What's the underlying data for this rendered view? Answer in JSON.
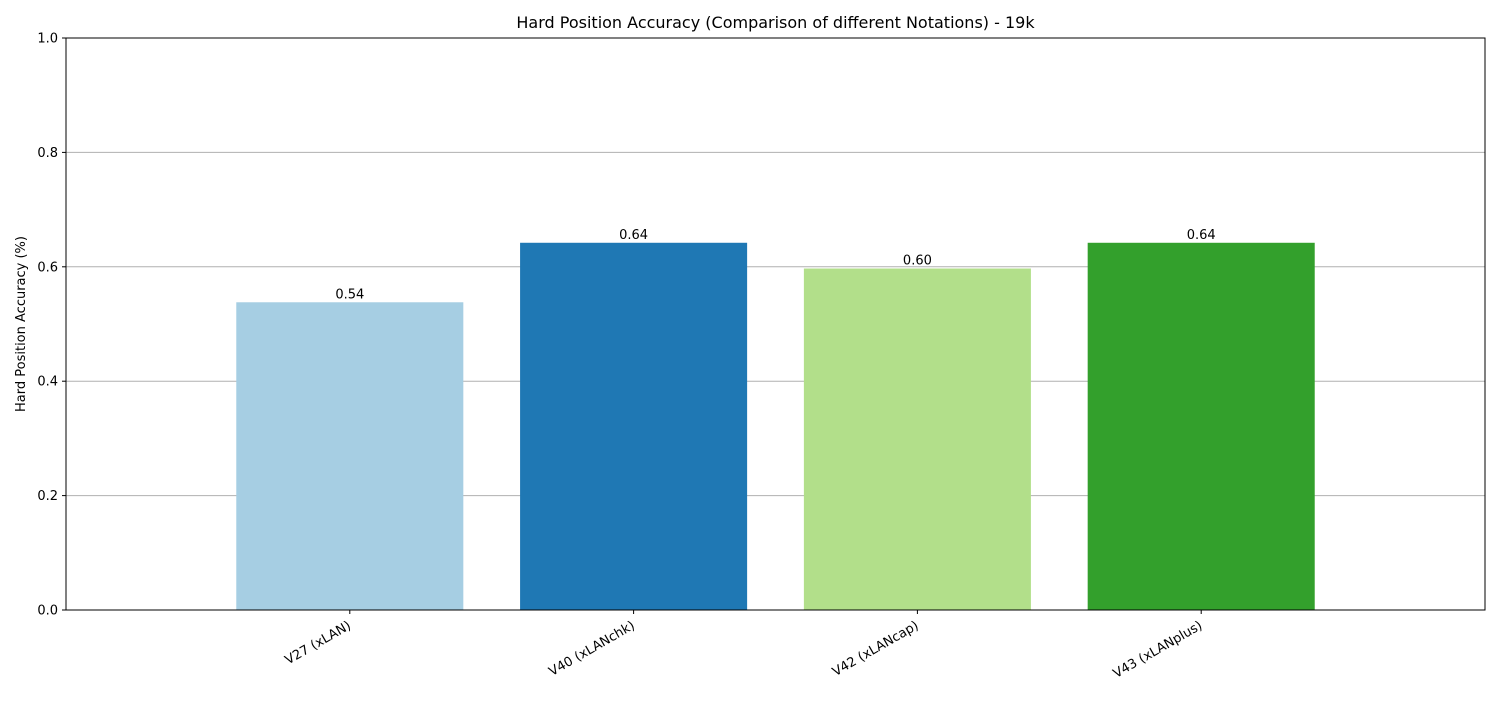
{
  "chart_data": {
    "type": "bar",
    "title": "Hard Position Accuracy (Comparison of different Notations) - 19k",
    "xlabel": "",
    "ylabel": "Hard Position Accuracy (%)",
    "categories": [
      "V27 (xLAN)",
      "V40 (xLANchk)",
      "V42 (xLANcap)",
      "V43 (xLANplus)"
    ],
    "values": [
      0.538,
      0.642,
      0.597,
      0.642
    ],
    "data_labels": [
      "0.54",
      "0.64",
      "0.60",
      "0.64"
    ],
    "colors": [
      "#a6cee3",
      "#1f78b4",
      "#b2df8a",
      "#33a02c"
    ],
    "ylim": [
      0,
      1.0
    ],
    "yticks": [
      0.0,
      0.2,
      0.4,
      0.6,
      0.8,
      1.0
    ],
    "ytick_labels": [
      "0.0",
      "0.2",
      "0.4",
      "0.6",
      "0.8",
      "1.0"
    ],
    "grid": "y",
    "grid_color": "#b0b0b0",
    "legend": "none"
  }
}
